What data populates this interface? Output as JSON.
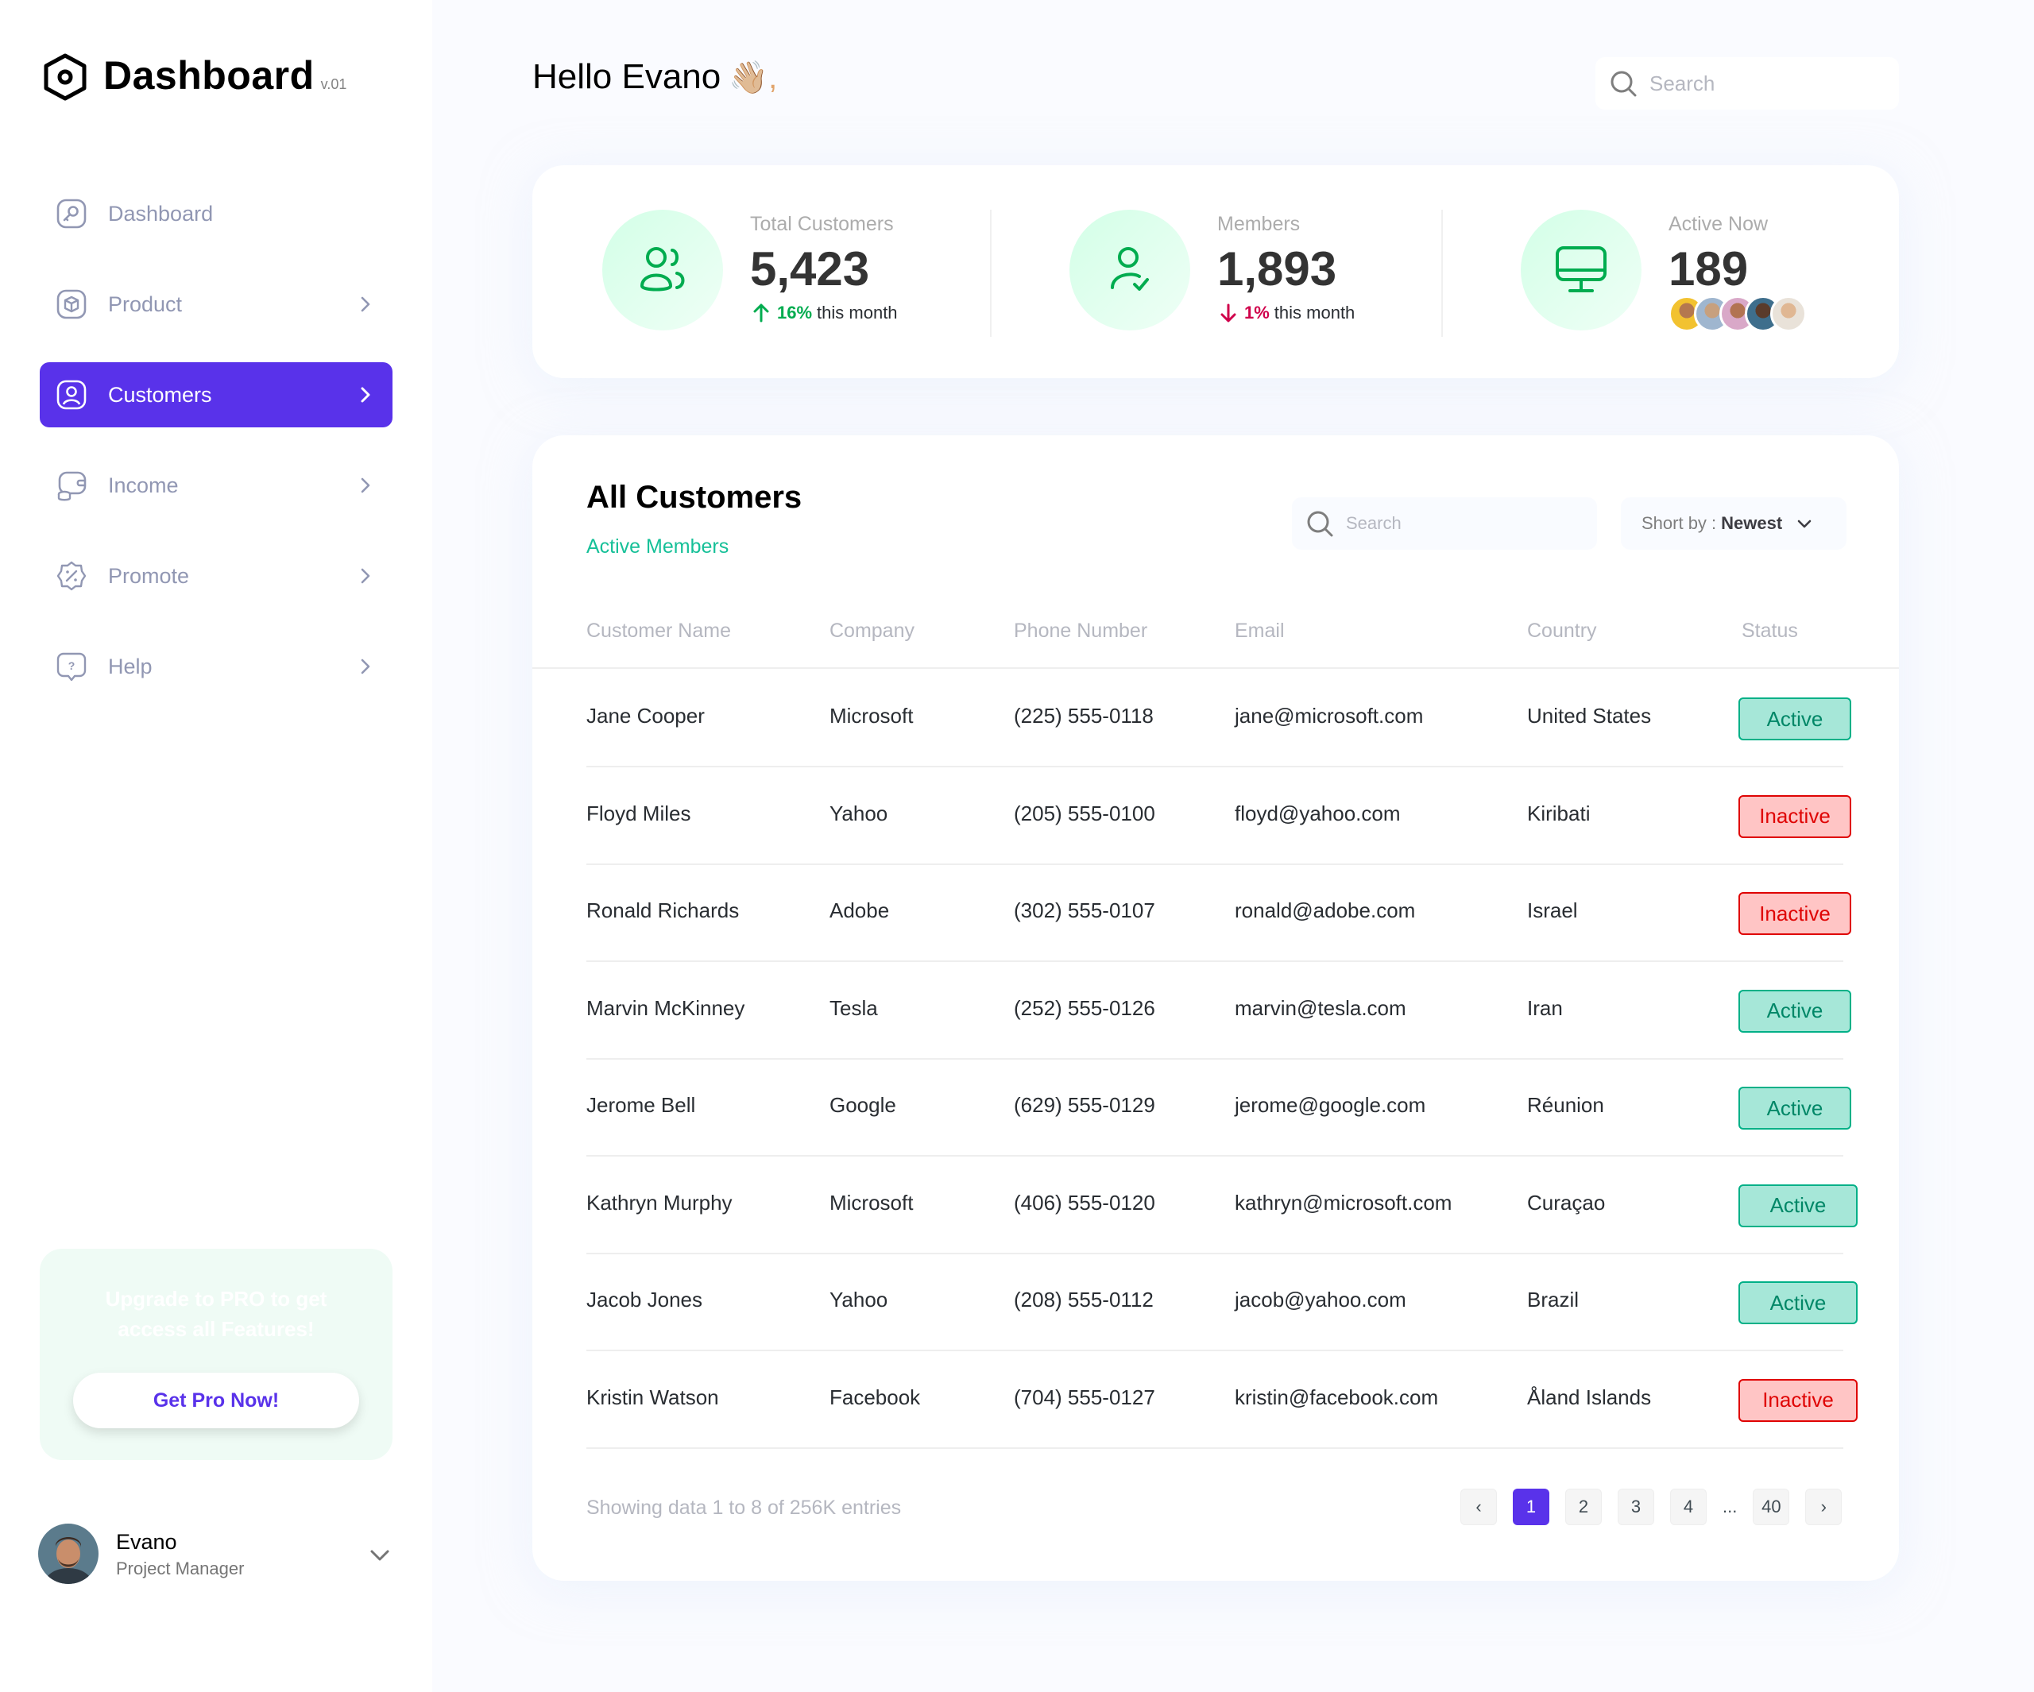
{
  "brand": {
    "title": "Dashboard",
    "version": "v.01"
  },
  "nav": [
    {
      "label": "Dashboard",
      "icon": "key-square-icon",
      "has_chevron": false,
      "active": false
    },
    {
      "label": "Product",
      "icon": "3d-square-icon",
      "has_chevron": true,
      "active": false
    },
    {
      "label": "Customers",
      "icon": "user-square-icon",
      "has_chevron": true,
      "active": true
    },
    {
      "label": "Income",
      "icon": "wallet-money-icon",
      "has_chevron": true,
      "active": false
    },
    {
      "label": "Promote",
      "icon": "discount-shape-icon",
      "has_chevron": true,
      "active": false
    },
    {
      "label": "Help",
      "icon": "message-question-icon",
      "has_chevron": true,
      "active": false
    }
  ],
  "promo": {
    "text": "Upgrade to PRO to get access all Features!",
    "button": "Get Pro Now!"
  },
  "profile": {
    "name": "Evano",
    "role": "Project Manager"
  },
  "header": {
    "greeting": "Hello Evano",
    "wave": "👋🏼,",
    "search_placeholder": "Search"
  },
  "stats": [
    {
      "label": "Total Customers",
      "value": "5,423",
      "delta": "16%",
      "delta_text": "this month",
      "trend": "up"
    },
    {
      "label": "Members",
      "value": "1,893",
      "delta": "1%",
      "delta_text": "this month",
      "trend": "down"
    },
    {
      "label": "Active Now",
      "value": "189"
    }
  ],
  "table": {
    "title": "All Customers",
    "subtitle": "Active Members",
    "search_placeholder": "Search",
    "sort_label": "Short by :",
    "sort_value": "Newest",
    "columns": [
      "Customer Name",
      "Company",
      "Phone Number",
      "Email",
      "Country",
      "Status"
    ],
    "rows": [
      {
        "name": "Jane Cooper",
        "company": "Microsoft",
        "phone": "(225) 555-0118",
        "email": "jane@microsoft.com",
        "country": "United States",
        "status": "Active"
      },
      {
        "name": "Floyd Miles",
        "company": "Yahoo",
        "phone": "(205) 555-0100",
        "email": "floyd@yahoo.com",
        "country": "Kiribati",
        "status": "Inactive"
      },
      {
        "name": "Ronald Richards",
        "company": "Adobe",
        "phone": "(302) 555-0107",
        "email": "ronald@adobe.com",
        "country": "Israel",
        "status": "Inactive"
      },
      {
        "name": "Marvin McKinney",
        "company": "Tesla",
        "phone": "(252) 555-0126",
        "email": "marvin@tesla.com",
        "country": "Iran",
        "status": "Active"
      },
      {
        "name": "Jerome Bell",
        "company": "Google",
        "phone": "(629) 555-0129",
        "email": "jerome@google.com",
        "country": "Réunion",
        "status": "Active"
      },
      {
        "name": "Kathryn Murphy",
        "company": "Microsoft",
        "phone": "(406) 555-0120",
        "email": "kathryn@microsoft.com",
        "country": "Curaçao",
        "status": "Active"
      },
      {
        "name": "Jacob Jones",
        "company": "Yahoo",
        "phone": "(208) 555-0112",
        "email": "jacob@yahoo.com",
        "country": "Brazil",
        "status": "Active"
      },
      {
        "name": "Kristin Watson",
        "company": "Facebook",
        "phone": "(704) 555-0127",
        "email": "kristin@facebook.com",
        "country": "Åland Islands",
        "status": "Inactive"
      }
    ],
    "footer": "Showing data 1 to 8 of  256K entries",
    "pages": {
      "prev": "‹",
      "items": [
        "1",
        "2",
        "3",
        "4"
      ],
      "dots": "...",
      "last": "40",
      "next": "›",
      "current": "1"
    }
  },
  "colors": {
    "accent": "#5932EA",
    "green": "#00AC4F",
    "red": "#D0004B",
    "teal": "#16C098"
  }
}
